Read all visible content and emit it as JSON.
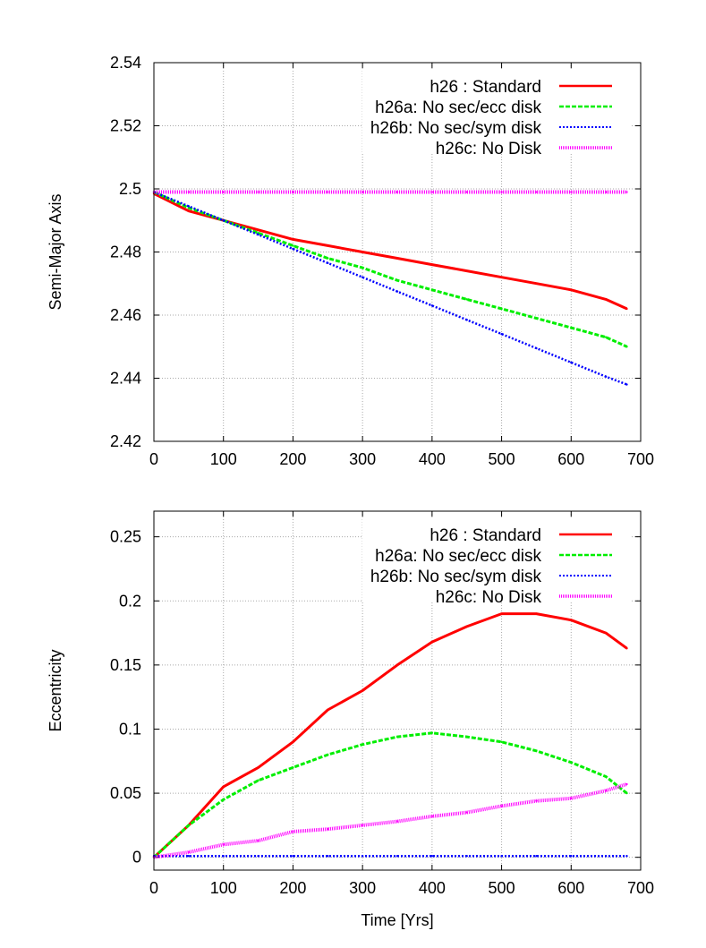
{
  "colors": {
    "h26": "#ff0000",
    "h26a": "#00ee00",
    "h26b": "#0000ff",
    "h26c": "#ff00ff"
  },
  "chart_data": [
    {
      "type": "line",
      "title": "",
      "xlabel": "",
      "ylabel": "Semi-Major Axis",
      "xlim": [
        0,
        700
      ],
      "ylim": [
        2.42,
        2.54
      ],
      "xticks": [
        "0",
        "100",
        "200",
        "300",
        "400",
        "500",
        "600",
        "700"
      ],
      "yticks": [
        "2.42",
        "2.44",
        "2.46",
        "2.48",
        "2.5",
        "2.52",
        "2.54"
      ],
      "grid": true,
      "legend_placement": "top-right",
      "x": [
        0,
        50,
        100,
        150,
        200,
        250,
        300,
        350,
        400,
        450,
        500,
        550,
        600,
        650,
        680
      ],
      "series": [
        {
          "name": "h26 : Standard",
          "key": "h26",
          "style": "solid",
          "values": [
            2.4985,
            2.493,
            2.49,
            2.487,
            2.484,
            2.482,
            2.48,
            2.478,
            2.476,
            2.474,
            2.472,
            2.47,
            2.468,
            2.465,
            2.462
          ]
        },
        {
          "name": "h26a: No sec/ecc disk",
          "key": "h26a",
          "style": "dashed",
          "values": [
            2.499,
            2.494,
            2.49,
            2.486,
            2.482,
            2.478,
            2.475,
            2.471,
            2.468,
            2.465,
            2.462,
            2.459,
            2.456,
            2.453,
            2.45
          ]
        },
        {
          "name": "h26b: No sec/sym disk",
          "key": "h26b",
          "style": "dotted",
          "values": [
            2.499,
            2.4945,
            2.49,
            2.4855,
            2.481,
            2.4765,
            2.472,
            2.4675,
            2.463,
            2.4585,
            2.454,
            2.4495,
            2.445,
            2.4405,
            2.438
          ]
        },
        {
          "name": "h26c: No Disk",
          "key": "h26c",
          "style": "dense-dotted",
          "values": [
            2.499,
            2.499,
            2.499,
            2.499,
            2.499,
            2.499,
            2.499,
            2.499,
            2.499,
            2.499,
            2.499,
            2.499,
            2.499,
            2.499,
            2.499
          ]
        }
      ]
    },
    {
      "type": "line",
      "title": "",
      "xlabel": "Time [Yrs]",
      "ylabel": "Eccentricity",
      "xlim": [
        0,
        700
      ],
      "ylim": [
        -0.01,
        0.27
      ],
      "xticks": [
        "0",
        "100",
        "200",
        "300",
        "400",
        "500",
        "600",
        "700"
      ],
      "yticks": [
        "0",
        "0.05",
        "0.1",
        "0.15",
        "0.2",
        "0.25"
      ],
      "grid": true,
      "legend_placement": "top-right",
      "x": [
        0,
        50,
        100,
        150,
        200,
        250,
        300,
        350,
        400,
        450,
        500,
        550,
        600,
        650,
        680
      ],
      "series": [
        {
          "name": "h26 : Standard",
          "key": "h26",
          "style": "solid",
          "values": [
            0.0,
            0.025,
            0.055,
            0.07,
            0.09,
            0.115,
            0.13,
            0.15,
            0.168,
            0.18,
            0.19,
            0.19,
            0.185,
            0.175,
            0.163
          ]
        },
        {
          "name": "h26a: No sec/ecc disk",
          "key": "h26a",
          "style": "dashed",
          "values": [
            0.0,
            0.025,
            0.045,
            0.06,
            0.07,
            0.08,
            0.088,
            0.094,
            0.097,
            0.094,
            0.09,
            0.083,
            0.074,
            0.063,
            0.05
          ]
        },
        {
          "name": "h26b: No sec/sym disk",
          "key": "h26b",
          "style": "dotted",
          "values": [
            0.001,
            0.001,
            0.001,
            0.001,
            0.001,
            0.001,
            0.001,
            0.001,
            0.001,
            0.001,
            0.001,
            0.001,
            0.001,
            0.001,
            0.001
          ]
        },
        {
          "name": "h26c: No Disk",
          "key": "h26c",
          "style": "dense-dotted",
          "values": [
            0.0,
            0.004,
            0.01,
            0.013,
            0.02,
            0.022,
            0.025,
            0.028,
            0.032,
            0.035,
            0.04,
            0.044,
            0.046,
            0.052,
            0.057
          ]
        }
      ]
    }
  ]
}
